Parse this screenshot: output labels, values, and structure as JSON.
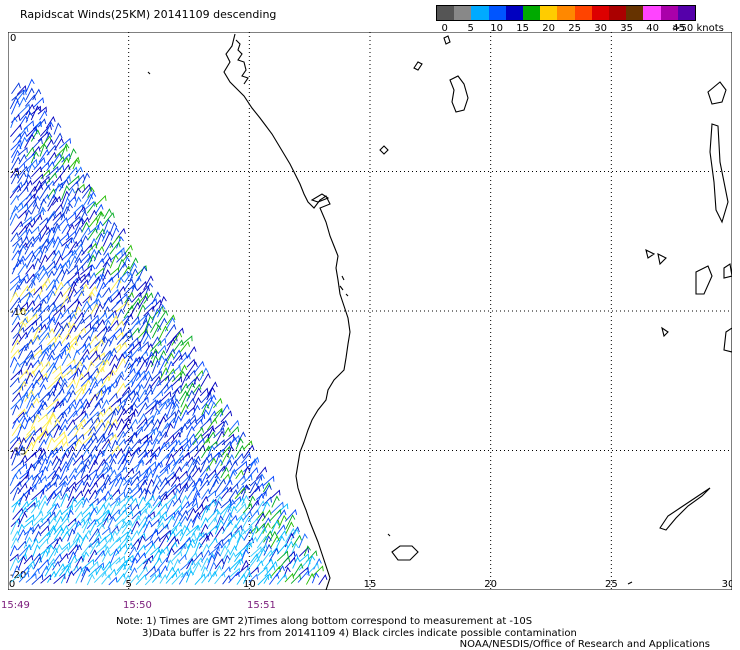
{
  "title": "Rapidscat Winds(25KM) 20141109 descending",
  "legend": {
    "unit_label": ">50 knots",
    "ticks": [
      "0",
      "5",
      "10",
      "15",
      "20",
      "25",
      "30",
      "35",
      "40",
      "45"
    ],
    "colors": [
      "#555555",
      "#888888",
      "#00aaff",
      "#0055ff",
      "#0000c0",
      "#00aa00",
      "#ffcc00",
      "#ff8800",
      "#ff4400",
      "#dd0000",
      "#aa0000",
      "#663300",
      "#ff44ff",
      "#aa00aa",
      "#5500aa"
    ]
  },
  "axes": {
    "x_ticks": [
      "0",
      "5",
      "10",
      "15",
      "20",
      "25",
      "30"
    ],
    "y_ticks": [
      "0",
      "-5",
      "-10",
      "-15",
      "-20"
    ]
  },
  "times": [
    "15:49",
    "15:50",
    "15:51"
  ],
  "note": {
    "line1": "Note: 1) Times are GMT 2)Times along bottom correspond to measurement at -10S",
    "line2": "3)Data buffer is 22 hrs from 20141109 4) Black circles indicate possible contamination"
  },
  "credit": "NOAA/NESDIS/Office of Research and Applications"
}
